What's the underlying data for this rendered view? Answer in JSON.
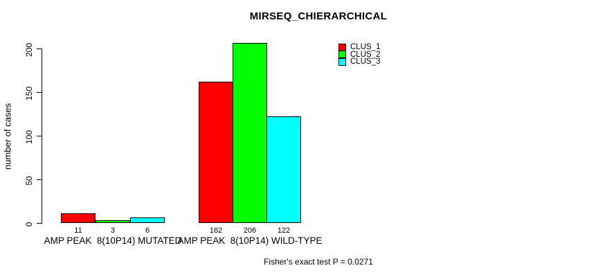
{
  "chart_data": {
    "type": "bar",
    "title": "MIRSEQ_CHIERARCHICAL",
    "xlabel": "",
    "ylabel": "number of cases",
    "ylim": [
      0,
      200
    ],
    "yticks": [
      0,
      50,
      100,
      150,
      200
    ],
    "grid": false,
    "legend_position": "top-right-inside",
    "categories": [
      "AMP PEAK  8(10P14) MUTATED",
      "AMP PEAK  8(10P14) WILD-TYPE"
    ],
    "series": [
      {
        "name": "CLUS_1",
        "color": "#ff0000",
        "values": [
          11,
          162
        ]
      },
      {
        "name": "CLUS_2",
        "color": "#00ff00",
        "values": [
          3,
          206
        ]
      },
      {
        "name": "CLUS_3",
        "color": "#00ffff",
        "values": [
          6,
          122
        ]
      }
    ],
    "bar_value_labels": [
      [
        "11",
        "3",
        "6"
      ],
      [
        "162",
        "206",
        "122"
      ]
    ],
    "groups": [
      {
        "label": "AMP PEAK  8(10P14) MUTATED"
      },
      {
        "label": "AMP PEAK  8(10P14) WILD-TYPE"
      }
    ],
    "annotation": "Fisher's exact test P = 0.0271"
  }
}
